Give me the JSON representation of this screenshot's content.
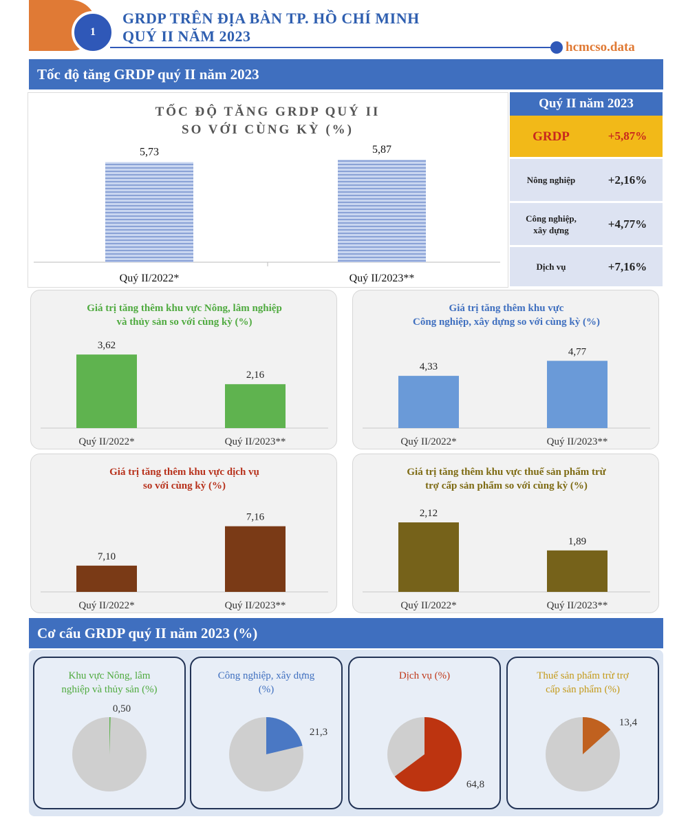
{
  "header": {
    "number": "1",
    "title_line1": "GRDP TRÊN ĐỊA BÀN TP. HỒ CHÍ MINH",
    "title_line2": "QUÝ II NĂM 2023",
    "brand": "hcmcso.data",
    "colors": {
      "accent_orange": "#e07a35",
      "accent_blue": "#2f58b8"
    }
  },
  "section1": {
    "title": "Tốc độ tăng GRDP quý II năm 2023"
  },
  "section2": {
    "title": "Cơ cấu GRDP quý II năm 2023 (%)"
  },
  "summary": {
    "header": "Quý II năm 2023",
    "grdp_label": "GRDP",
    "grdp_value": "+5,87%",
    "rows": [
      {
        "name": "Nông nghiệp",
        "value": "+2,16%"
      },
      {
        "name_line1": "Công nghiệp,",
        "name_line2": "xây dựng",
        "value": "+4,77%"
      },
      {
        "name": "Dịch vụ",
        "value": "+7,16%"
      }
    ]
  },
  "chart_data": [
    {
      "type": "bar",
      "title_line1": "TỐC ĐỘ TĂNG GRDP QUÝ II",
      "title_line2": "SO VỚI CÙNG KỲ (%)",
      "categories": [
        "Quý II/2022*",
        "Quý II/2023**"
      ],
      "values": [
        5.73,
        5.87
      ],
      "labels": [
        "5,73",
        "5,87"
      ],
      "color": "#a9bde6",
      "ylim": [
        0,
        6.5
      ]
    },
    {
      "type": "bar",
      "title_line1": "Giá trị tăng thêm khu vực Nông, lâm nghiệp",
      "title_line2": "và thủy sản so với cùng kỳ (%)",
      "title_color": "#4faa3f",
      "categories": [
        "Quý II/2022*",
        "Quý II/2023**"
      ],
      "values": [
        3.62,
        2.16
      ],
      "labels": [
        "3,62",
        "2,16"
      ],
      "color": "#5fb34f",
      "ylim": [
        0,
        4.2
      ]
    },
    {
      "type": "bar",
      "title_line1": "Giá trị tăng thêm khu vực",
      "title_line2": "Công nghiệp, xây dựng so với cùng kỳ (%)",
      "title_color": "#3f6fbf",
      "categories": [
        "Quý II/2022*",
        "Quý II/2023**"
      ],
      "values": [
        4.33,
        4.77
      ],
      "labels": [
        "4,33",
        "4,77"
      ],
      "color": "#6a9ad8",
      "ylim": [
        2.8,
        5.3
      ]
    },
    {
      "type": "bar",
      "title_line1": "Giá trị tăng thêm khu vực dịch vụ",
      "title_line2": "so với cùng kỳ (%)",
      "title_color": "#b7311b",
      "categories": [
        "Quý II/2022*",
        "Quý II/2023**"
      ],
      "values": [
        7.1,
        7.16
      ],
      "labels": [
        "7,10",
        "7,16"
      ],
      "color": "#7a3a16",
      "ylim": [
        7.06,
        7.19
      ]
    },
    {
      "type": "bar",
      "title_line1": "Giá trị tăng thêm khu vực thuế sản phẩm trừ",
      "title_line2": "trợ cấp sản phẩm so với cùng kỳ (%)",
      "title_color": "#7d6a12",
      "categories": [
        "Quý II/2022*",
        "Quý II/2023**"
      ],
      "values": [
        2.12,
        1.89
      ],
      "labels": [
        "2,12",
        "1,89"
      ],
      "color": "#76621a",
      "ylim": [
        1.55,
        2.25
      ]
    },
    {
      "type": "pie",
      "title_line1": "Khu vực Nông, lâm",
      "title_line2": "nghiệp và thủy sản (%)",
      "title_color": "#4faa3f",
      "value": 0.5,
      "label": "0,50",
      "color": "#5fb34f",
      "rest_color": "#cfcfcf"
    },
    {
      "type": "pie",
      "title_line1": "Công nghiệp, xây dựng",
      "title_line2": "(%)",
      "title_color": "#3f6fbf",
      "value": 21.3,
      "label": "21,3",
      "color": "#4a78c4",
      "rest_color": "#cfcfcf"
    },
    {
      "type": "pie",
      "title_line1": "Dịch vụ (%)",
      "title_line2": "",
      "title_color": "#c0391b",
      "value": 64.8,
      "label": "64,8",
      "color": "#bd3410",
      "rest_color": "#cfcfcf"
    },
    {
      "type": "pie",
      "title_line1": "Thuế sản phẩm trừ trợ",
      "title_line2": "cấp sản phẩm (%)",
      "title_color": "#c49a1a",
      "value": 13.4,
      "label": "13,4",
      "color": "#c0611f",
      "rest_color": "#cfcfcf"
    }
  ]
}
